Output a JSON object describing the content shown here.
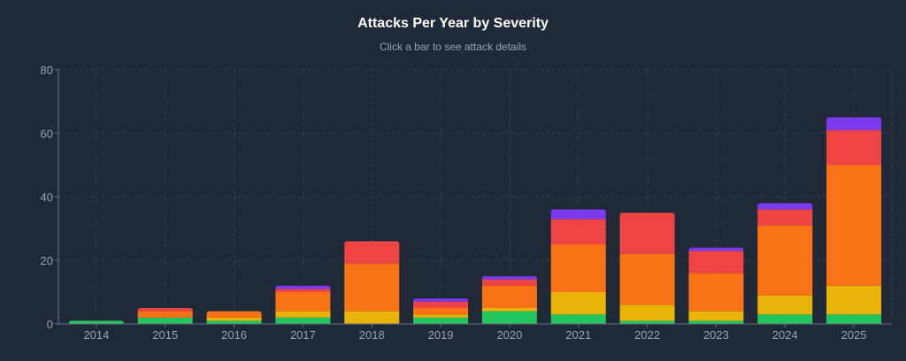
{
  "chart_data": {
    "type": "bar",
    "stacked": true,
    "title": "Attacks Per Year by Severity",
    "subtitle": "Click a bar to see attack details",
    "xlabel": "",
    "ylabel": "",
    "ylim": [
      0,
      80
    ],
    "yticks": [
      "0",
      "20",
      "40",
      "60",
      "80"
    ],
    "grid": true,
    "categories": [
      "2014",
      "2015",
      "2016",
      "2017",
      "2018",
      "2019",
      "2020",
      "2021",
      "2022",
      "2023",
      "2024",
      "2025"
    ],
    "series": [
      {
        "color": "#22c55e",
        "values": [
          1,
          2,
          1,
          2,
          0,
          2,
          4,
          3,
          1,
          1,
          3,
          3
        ]
      },
      {
        "color": "#eab308",
        "values": [
          0,
          0,
          1,
          2,
          4,
          1,
          1,
          7,
          5,
          3,
          6,
          9
        ]
      },
      {
        "color": "#f97316",
        "values": [
          0,
          2,
          2,
          6,
          15,
          2,
          7,
          15,
          16,
          12,
          22,
          38
        ]
      },
      {
        "color": "#ef4444",
        "values": [
          0,
          1,
          0,
          1,
          7,
          2,
          2,
          8,
          13,
          7,
          5,
          11
        ]
      },
      {
        "color": "#7c3aed",
        "values": [
          0,
          0,
          0,
          1,
          0,
          1,
          1,
          3,
          0,
          1,
          2,
          4
        ]
      }
    ]
  }
}
